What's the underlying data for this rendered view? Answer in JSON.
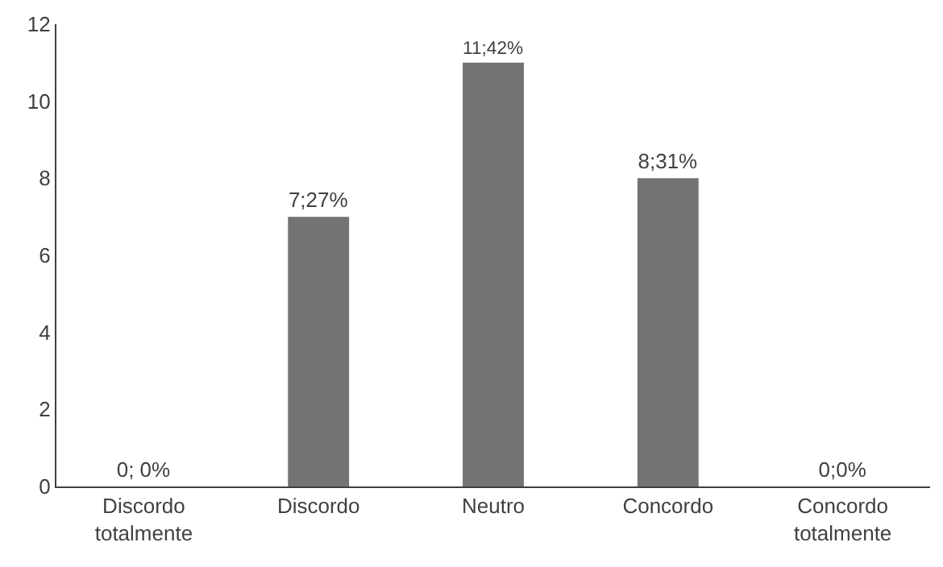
{
  "chart_data": {
    "type": "bar",
    "categories": [
      "Discordo totalmente",
      "Discordo",
      "Neutro",
      "Concordo",
      "Concordo totalmente"
    ],
    "values": [
      0,
      7,
      11,
      8,
      0
    ],
    "color": "#737373",
    "value_labels": [
      "0; 0%",
      "7;27%",
      "11;42%",
      "8;31%",
      "0;0%"
    ],
    "ylim": [
      0,
      12
    ],
    "yticks": [
      0,
      2,
      4,
      6,
      8,
      10,
      12
    ],
    "legend": false
  }
}
